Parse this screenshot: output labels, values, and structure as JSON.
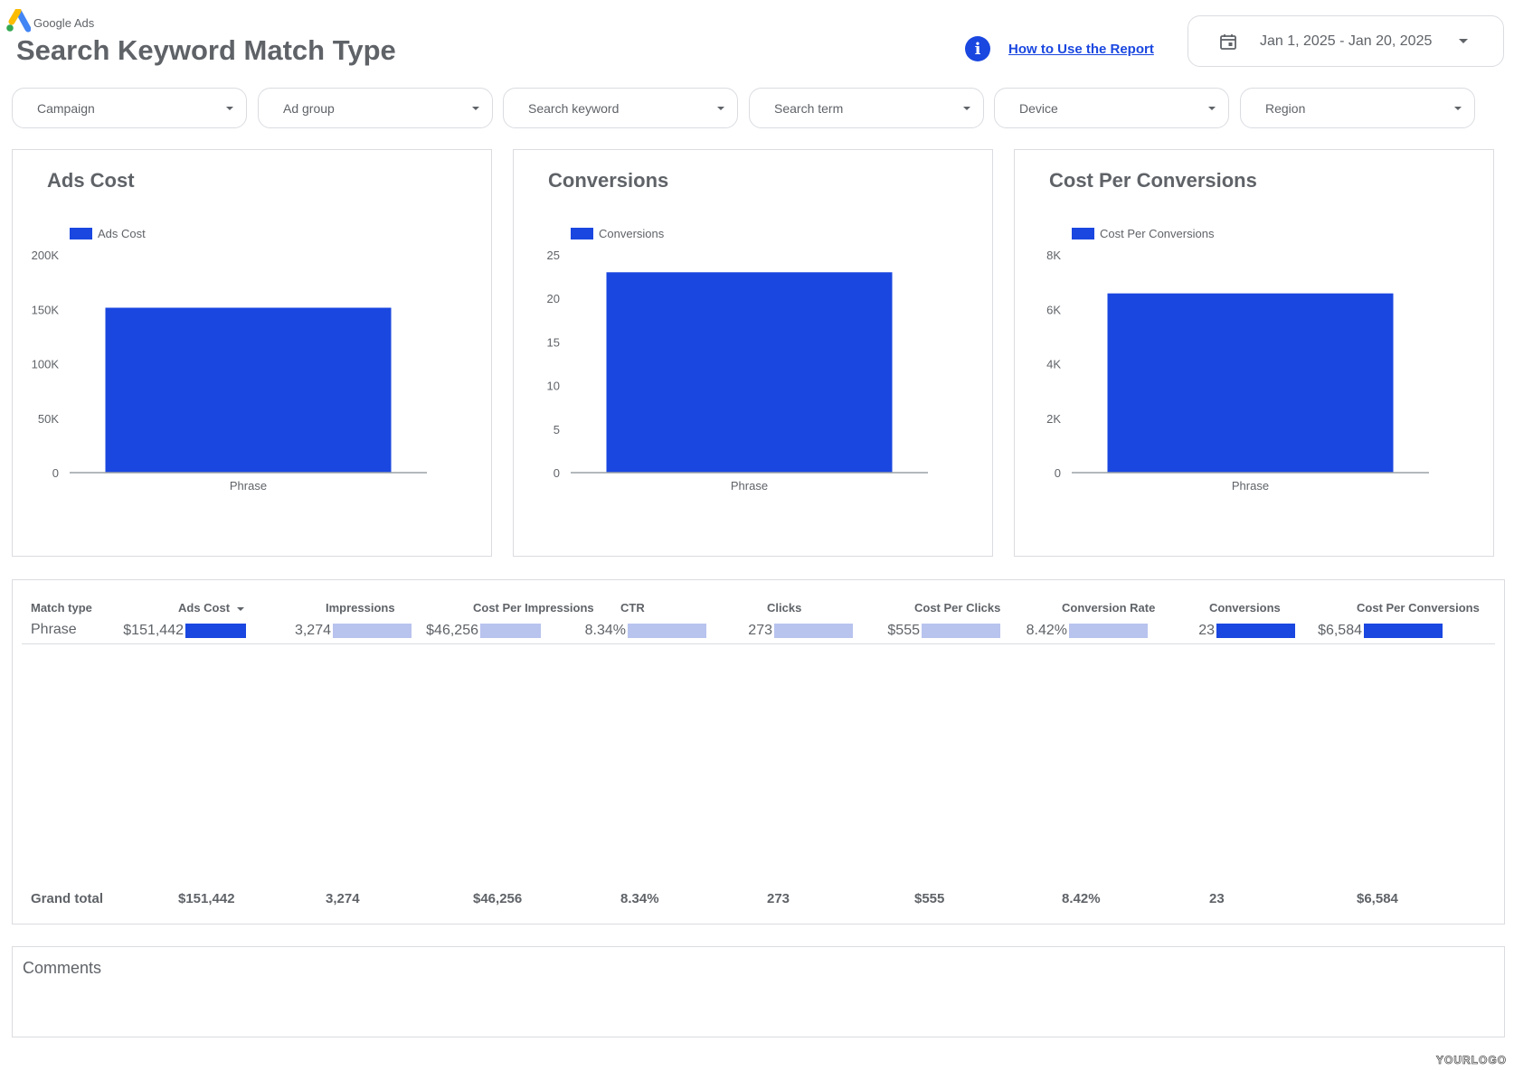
{
  "brand": {
    "name": "Google Ads",
    "logo_icon": "google-ads-logo"
  },
  "page": {
    "title": "Search Keyword Match Type"
  },
  "help": {
    "icon": "info-icon",
    "link_label": "How to Use the Report"
  },
  "date_range": {
    "icon": "calendar-icon",
    "value": "Jan 1, 2025 - Jan 20, 2025"
  },
  "filters": [
    {
      "label": "Campaign"
    },
    {
      "label": "Ad group"
    },
    {
      "label": "Search keyword"
    },
    {
      "label": "Search term"
    },
    {
      "label": "Device"
    },
    {
      "label": "Region"
    }
  ],
  "colors": {
    "accent": "#1a47e0",
    "bar_light": "#b8c3ee",
    "text": "#5f6368",
    "border": "#dadce0"
  },
  "chart_data": [
    {
      "type": "bar",
      "title": "Ads Cost",
      "categories": [
        "Phrase"
      ],
      "series": [
        {
          "name": "Ads Cost",
          "values": [
            151442
          ]
        }
      ],
      "ylim": [
        0,
        200000
      ],
      "yticks": [
        "0",
        "50K",
        "100K",
        "150K",
        "200K"
      ],
      "legend": "top-left",
      "grid": false
    },
    {
      "type": "bar",
      "title": "Conversions",
      "categories": [
        "Phrase"
      ],
      "series": [
        {
          "name": "Conversions",
          "values": [
            23
          ]
        }
      ],
      "ylim": [
        0,
        25
      ],
      "yticks": [
        "0",
        "5",
        "10",
        "15",
        "20",
        "25"
      ],
      "legend": "top-left",
      "grid": false
    },
    {
      "type": "bar",
      "title": "Cost Per Conversions",
      "categories": [
        "Phrase"
      ],
      "series": [
        {
          "name": "Cost Per Conversions",
          "values": [
            6584
          ]
        }
      ],
      "ylim": [
        0,
        8000
      ],
      "yticks": [
        "0",
        "2K",
        "4K",
        "6K",
        "8K"
      ],
      "legend": "top-left",
      "grid": false
    }
  ],
  "table": {
    "columns": [
      "Match type",
      "Ads Cost",
      "Impressions",
      "Cost Per Impressions",
      "CTR",
      "Clicks",
      "Cost Per Clicks",
      "Conversion Rate",
      "Conversions",
      "Cost Per Conversions"
    ],
    "sorted_column": "Ads Cost",
    "rows": [
      {
        "label": "Phrase",
        "values": [
          "$151,442",
          "3,274",
          "$46,256",
          "8.34%",
          "273",
          "$555",
          "8.42%",
          "23",
          "$6,584"
        ],
        "bar_fill": [
          0.73,
          0.95,
          0.73,
          0.95,
          0.95,
          0.95,
          0.95,
          0.95,
          0.95
        ],
        "bar_style": [
          "dark",
          "light",
          "light",
          "light",
          "light",
          "light",
          "light",
          "dark",
          "dark"
        ]
      }
    ],
    "grand_total": {
      "label": "Grand total",
      "values": [
        "$151,442",
        "3,274",
        "$46,256",
        "8.34%",
        "273",
        "$555",
        "8.42%",
        "23",
        "$6,584"
      ]
    }
  },
  "comments": {
    "label": "Comments"
  },
  "footer": {
    "logo_text": "YOURLOGO"
  }
}
